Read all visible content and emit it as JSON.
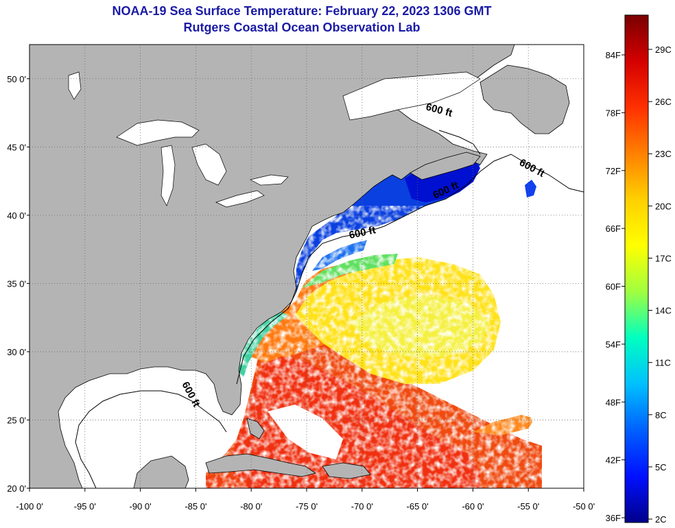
{
  "header": {
    "title": "NOAA-19 Sea Surface Temperature:  February 22, 2023 1306 GMT",
    "subtitle": "Rutgers Coastal Ocean Observation Lab"
  },
  "map": {
    "lon_range": [
      -100,
      -50
    ],
    "lat_range": [
      20,
      52.5
    ],
    "lon_ticks": [
      {
        "value": -100,
        "label": "-100 0'"
      },
      {
        "value": -95,
        "label": "-95 0'"
      },
      {
        "value": -90,
        "label": "-90 0'"
      },
      {
        "value": -85,
        "label": "-85 0'"
      },
      {
        "value": -80,
        "label": "-80 0'"
      },
      {
        "value": -75,
        "label": "-75 0'"
      },
      {
        "value": -70,
        "label": "-70 0'"
      },
      {
        "value": -65,
        "label": "-65 0'"
      },
      {
        "value": -60,
        "label": "-60 0'"
      },
      {
        "value": -55,
        "label": "-55 0'"
      },
      {
        "value": -50,
        "label": "-50 0'"
      }
    ],
    "lat_ticks": [
      {
        "value": 50,
        "label": "50 0'"
      },
      {
        "value": 45,
        "label": "45 0'"
      },
      {
        "value": 40,
        "label": "40 0'"
      },
      {
        "value": 35,
        "label": "35 0'"
      },
      {
        "value": 30,
        "label": "30 0'"
      },
      {
        "value": 25,
        "label": "25 0'"
      },
      {
        "value": 20,
        "label": "20 0'"
      }
    ],
    "depth_labels": [
      "600 ft",
      "600 ft",
      "600 ft",
      "600 ft",
      "600 ft"
    ],
    "land_color": "#b4b4b4",
    "frame_color": "#000000"
  },
  "colorbar": {
    "fahrenheit": [
      "84F",
      "78F",
      "72F",
      "66F",
      "60F",
      "54F",
      "48F",
      "42F",
      "36F"
    ],
    "celsius": [
      "29C",
      "26C",
      "23C",
      "20C",
      "17C",
      "14C",
      "11C",
      "8C",
      "5C",
      "2C"
    ],
    "colors": [
      "#7a0000",
      "#d40000",
      "#ff3000",
      "#ff8000",
      "#ffd000",
      "#ffff00",
      "#a0ff40",
      "#00ffc0",
      "#00c0ff",
      "#0060ff",
      "#0010ff",
      "#00008a"
    ]
  }
}
